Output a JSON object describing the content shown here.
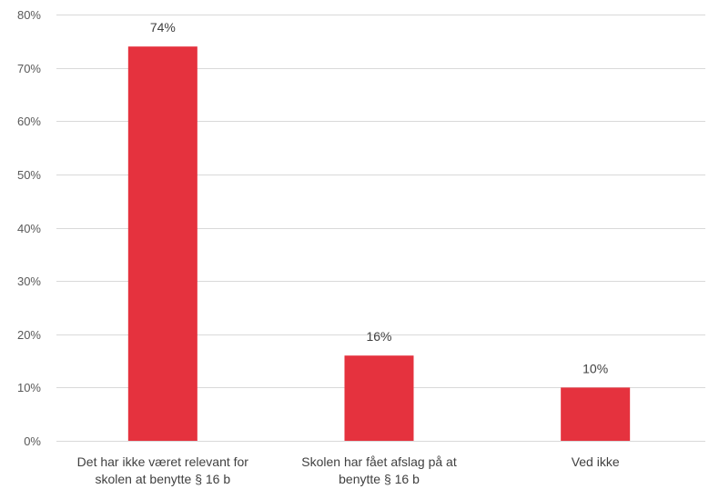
{
  "chart_data": {
    "type": "bar",
    "categories": [
      [
        "Det har ikke været relevant for",
        "skolen at benytte § 16 b"
      ],
      [
        "Skolen har fået afslag på at",
        "benytte § 16 b"
      ],
      [
        "Ved ikke"
      ]
    ],
    "values": [
      74,
      16,
      10
    ],
    "data_labels": [
      "74%",
      "16%",
      "10%"
    ],
    "ylim": [
      0,
      80
    ],
    "yticks": [
      0,
      10,
      20,
      30,
      40,
      50,
      60,
      70,
      80
    ],
    "ytick_labels": [
      "0%",
      "10%",
      "20%",
      "30%",
      "40%",
      "50%",
      "60%",
      "70%",
      "80%"
    ],
    "grid": true,
    "bar_color": "#e5323e",
    "title": "",
    "xlabel": "",
    "ylabel": ""
  }
}
